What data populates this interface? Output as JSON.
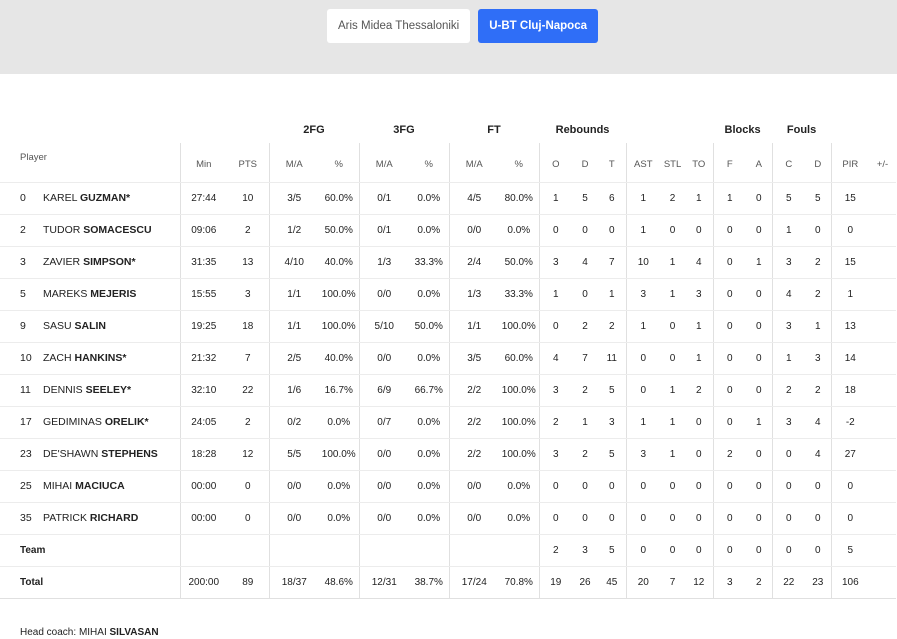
{
  "tabs": [
    {
      "label": "Aris Midea Thessaloniki",
      "active": false
    },
    {
      "label": "U-BT Cluj-Napoca",
      "active": true
    }
  ],
  "colors": {
    "accent": "#2f6ef7",
    "topbar": "#e6e6e6"
  },
  "groups": {
    "fg2": "2FG",
    "fg3": "3FG",
    "ft": "FT",
    "rebounds": "Rebounds",
    "blocks": "Blocks",
    "fouls": "Fouls"
  },
  "headers": {
    "player": "Player",
    "min": "Min",
    "pts": "PTS",
    "fg2_ma": "M/A",
    "fg2_pct": "%",
    "fg3_ma": "M/A",
    "fg3_pct": "%",
    "ft_ma": "M/A",
    "ft_pct": "%",
    "reb_o": "O",
    "reb_d": "D",
    "reb_t": "T",
    "ast": "AST",
    "stl": "STL",
    "to": "TO",
    "blk_f": "F",
    "blk_a": "A",
    "foul_c": "C",
    "foul_d": "D",
    "pir": "PIR",
    "pm": "+/-"
  },
  "players": [
    {
      "num": "0",
      "first": "KAREL",
      "last": "GUZMAN*",
      "min": "27:44",
      "pts": "10",
      "fg2": "3/5",
      "fg2p": "60.0%",
      "fg3": "0/1",
      "fg3p": "0.0%",
      "ft": "4/5",
      "ftp": "80.0%",
      "o": "1",
      "d": "5",
      "t": "6",
      "ast": "1",
      "stl": "2",
      "to": "1",
      "bf": "1",
      "ba": "0",
      "fc": "5",
      "fd": "5",
      "pir": "15",
      "pm": ""
    },
    {
      "num": "2",
      "first": "TUDOR",
      "last": "SOMACESCU",
      "min": "09:06",
      "pts": "2",
      "fg2": "1/2",
      "fg2p": "50.0%",
      "fg3": "0/1",
      "fg3p": "0.0%",
      "ft": "0/0",
      "ftp": "0.0%",
      "o": "0",
      "d": "0",
      "t": "0",
      "ast": "1",
      "stl": "0",
      "to": "0",
      "bf": "0",
      "ba": "0",
      "fc": "1",
      "fd": "0",
      "pir": "0",
      "pm": ""
    },
    {
      "num": "3",
      "first": "ZAVIER",
      "last": "SIMPSON*",
      "min": "31:35",
      "pts": "13",
      "fg2": "4/10",
      "fg2p": "40.0%",
      "fg3": "1/3",
      "fg3p": "33.3%",
      "ft": "2/4",
      "ftp": "50.0%",
      "o": "3",
      "d": "4",
      "t": "7",
      "ast": "10",
      "stl": "1",
      "to": "4",
      "bf": "0",
      "ba": "1",
      "fc": "3",
      "fd": "2",
      "pir": "15",
      "pm": ""
    },
    {
      "num": "5",
      "first": "MAREKS",
      "last": "MEJERIS",
      "min": "15:55",
      "pts": "3",
      "fg2": "1/1",
      "fg2p": "100.0%",
      "fg3": "0/0",
      "fg3p": "0.0%",
      "ft": "1/3",
      "ftp": "33.3%",
      "o": "1",
      "d": "0",
      "t": "1",
      "ast": "3",
      "stl": "1",
      "to": "3",
      "bf": "0",
      "ba": "0",
      "fc": "4",
      "fd": "2",
      "pir": "1",
      "pm": ""
    },
    {
      "num": "9",
      "first": "SASU",
      "last": "SALIN",
      "min": "19:25",
      "pts": "18",
      "fg2": "1/1",
      "fg2p": "100.0%",
      "fg3": "5/10",
      "fg3p": "50.0%",
      "ft": "1/1",
      "ftp": "100.0%",
      "o": "0",
      "d": "2",
      "t": "2",
      "ast": "1",
      "stl": "0",
      "to": "1",
      "bf": "0",
      "ba": "0",
      "fc": "3",
      "fd": "1",
      "pir": "13",
      "pm": ""
    },
    {
      "num": "10",
      "first": "ZACH",
      "last": "HANKINS*",
      "min": "21:32",
      "pts": "7",
      "fg2": "2/5",
      "fg2p": "40.0%",
      "fg3": "0/0",
      "fg3p": "0.0%",
      "ft": "3/5",
      "ftp": "60.0%",
      "o": "4",
      "d": "7",
      "t": "11",
      "ast": "0",
      "stl": "0",
      "to": "1",
      "bf": "0",
      "ba": "0",
      "fc": "1",
      "fd": "3",
      "pir": "14",
      "pm": ""
    },
    {
      "num": "11",
      "first": "DENNIS",
      "last": "SEELEY*",
      "min": "32:10",
      "pts": "22",
      "fg2": "1/6",
      "fg2p": "16.7%",
      "fg3": "6/9",
      "fg3p": "66.7%",
      "ft": "2/2",
      "ftp": "100.0%",
      "o": "3",
      "d": "2",
      "t": "5",
      "ast": "0",
      "stl": "1",
      "to": "2",
      "bf": "0",
      "ba": "0",
      "fc": "2",
      "fd": "2",
      "pir": "18",
      "pm": ""
    },
    {
      "num": "17",
      "first": "GEDIMINAS",
      "last": "ORELIK*",
      "min": "24:05",
      "pts": "2",
      "fg2": "0/2",
      "fg2p": "0.0%",
      "fg3": "0/7",
      "fg3p": "0.0%",
      "ft": "2/2",
      "ftp": "100.0%",
      "o": "2",
      "d": "1",
      "t": "3",
      "ast": "1",
      "stl": "1",
      "to": "0",
      "bf": "0",
      "ba": "1",
      "fc": "3",
      "fd": "4",
      "pir": "-2",
      "pm": ""
    },
    {
      "num": "23",
      "first": "DE'SHAWN",
      "last": "STEPHENS",
      "min": "18:28",
      "pts": "12",
      "fg2": "5/5",
      "fg2p": "100.0%",
      "fg3": "0/0",
      "fg3p": "0.0%",
      "ft": "2/2",
      "ftp": "100.0%",
      "o": "3",
      "d": "2",
      "t": "5",
      "ast": "3",
      "stl": "1",
      "to": "0",
      "bf": "2",
      "ba": "0",
      "fc": "0",
      "fd": "4",
      "pir": "27",
      "pm": ""
    },
    {
      "num": "25",
      "first": "MIHAI",
      "last": "MACIUCA",
      "min": "00:00",
      "pts": "0",
      "fg2": "0/0",
      "fg2p": "0.0%",
      "fg3": "0/0",
      "fg3p": "0.0%",
      "ft": "0/0",
      "ftp": "0.0%",
      "o": "0",
      "d": "0",
      "t": "0",
      "ast": "0",
      "stl": "0",
      "to": "0",
      "bf": "0",
      "ba": "0",
      "fc": "0",
      "fd": "0",
      "pir": "0",
      "pm": ""
    },
    {
      "num": "35",
      "first": "PATRICK",
      "last": "RICHARD",
      "min": "00:00",
      "pts": "0",
      "fg2": "0/0",
      "fg2p": "0.0%",
      "fg3": "0/0",
      "fg3p": "0.0%",
      "ft": "0/0",
      "ftp": "0.0%",
      "o": "0",
      "d": "0",
      "t": "0",
      "ast": "0",
      "stl": "0",
      "to": "0",
      "bf": "0",
      "ba": "0",
      "fc": "0",
      "fd": "0",
      "pir": "0",
      "pm": ""
    }
  ],
  "team_row": {
    "label": "Team",
    "min": "",
    "pts": "",
    "fg2": "",
    "fg2p": "",
    "fg3": "",
    "fg3p": "",
    "ft": "",
    "ftp": "",
    "o": "2",
    "d": "3",
    "t": "5",
    "ast": "0",
    "stl": "0",
    "to": "0",
    "bf": "0",
    "ba": "0",
    "fc": "0",
    "fd": "0",
    "pir": "5",
    "pm": ""
  },
  "total_row": {
    "label": "Total",
    "min": "200:00",
    "pts": "89",
    "fg2": "18/37",
    "fg2p": "48.6%",
    "fg3": "12/31",
    "fg3p": "38.7%",
    "ft": "17/24",
    "ftp": "70.8%",
    "o": "19",
    "d": "26",
    "t": "45",
    "ast": "20",
    "stl": "7",
    "to": "12",
    "bf": "3",
    "ba": "2",
    "fc": "22",
    "fd": "23",
    "pir": "106",
    "pm": ""
  },
  "coach": {
    "label": "Head coach:",
    "first": "MIHAI",
    "last": "SILVASAN"
  }
}
